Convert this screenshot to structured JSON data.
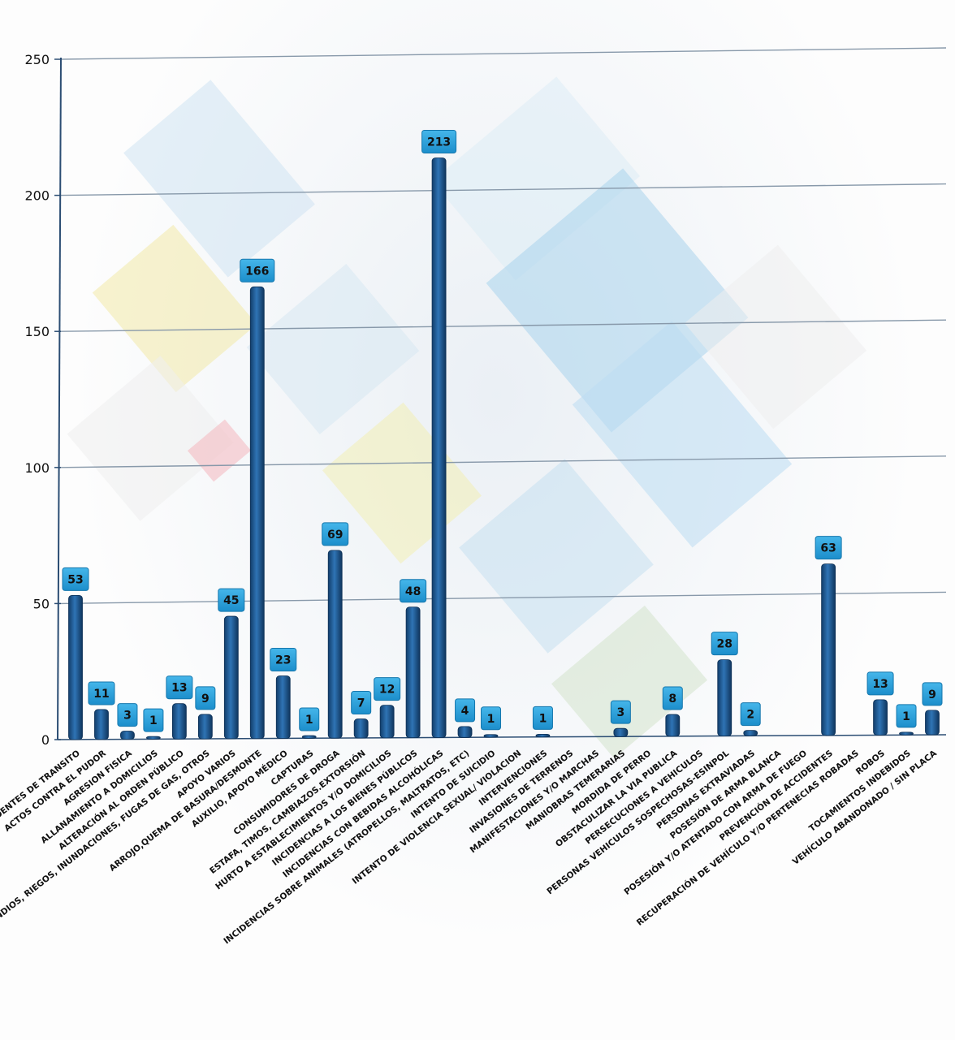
{
  "chart_data": {
    "type": "bar",
    "title": "",
    "xlabel": "",
    "ylabel": "",
    "ylim": [
      0,
      250
    ],
    "yticks": [
      0,
      50,
      100,
      150,
      200,
      250
    ],
    "grid": true,
    "categories": [
      "ACCIDENTES DE TRANSITO",
      "ACTOS CONTRA EL PUDOR",
      "AGRESION FISICA",
      "ALLANAMIENTO A DOMICILIOS",
      "ALTERACIÓN AL ORDEN PÚBLICO",
      "AMAGOS, INCENDIOS, RIEGOS, INUNDACIONES, FUGAS DE GAS, OTROS",
      "APOYO VARIOS",
      "ARROJO,QUEMA DE BASURA/DESMONTE",
      "AUXILIO, APOYO MÉDICO",
      "CAPTURAS",
      "CONSUMIDORES DE DROGA",
      "ESTAFA, TIMOS, CAMBIAZOS.EXTORSIÓN",
      "HURTO A ESTABLECIMIENTOS Y/O DOMICILIOS",
      "INCIDENCIAS A LOS BIENES PÚBLICOS",
      "INCIDENCIAS CON BEBIDAS ALCOHÓLICAS",
      "INCIDENCIAS SOBRE ANIMALES (ATROPELLOS, MALTRATOS, ETC)",
      "INTENTO DE SUICIDIO",
      "INTENTO DE VIOLENCIA SEXUAL/ VIOLACION",
      "INTERVENCIONES",
      "INVASIONES DE TERRENOS",
      "MANIFESTACIONES Y/O MARCHAS",
      "MANIOBRAS TEMERARIAS",
      "MORDIDA DE PERRO",
      "OBSTACULIZAR LA VIA PUBLICA",
      "PERSECUCIONES A VEHICULOS",
      "PERSONAS VEHICULOS SOSPECHOSAS-ESINPOL",
      "PERSONAS EXTRAVIADAS",
      "POSESIÓN DE ARMA BLANCA",
      "POSESIÓN Y/O ATENTADO CON ARMA DE FUEGO",
      "PREVENCIÓN DE ACCIDENTES",
      "RECUPERACIÓN DE VEHÍCULO Y/O PERTENECIAS ROBADAS",
      "ROBOS",
      "TOCAMIENTOS INDEBIDOS",
      "VEHÍCULO ABANDONADO / SIN PLACA"
    ],
    "values": [
      53,
      11,
      3,
      1,
      13,
      9,
      45,
      166,
      23,
      1,
      69,
      7,
      12,
      48,
      213,
      4,
      1,
      null,
      1,
      null,
      null,
      3,
      null,
      8,
      null,
      28,
      2,
      null,
      null,
      63,
      null,
      13,
      1,
      9
    ],
    "data_labels": [
      "53",
      "11",
      "3",
      "1",
      "13",
      "9",
      "45",
      "166",
      "23",
      "1",
      "69",
      "7",
      "12",
      "48",
      "213",
      "4",
      "1",
      "",
      "1",
      "",
      "",
      "3",
      "",
      "8",
      "",
      "28",
      "2",
      "",
      "",
      "63",
      "",
      "13",
      "1",
      "9"
    ],
    "colors": {
      "bar": "#1f5e9e",
      "bar_highlight": "#4f8fcf",
      "label_box": "#2a9fd8",
      "grid": "#8899aa",
      "axis": "#2b4d73"
    }
  }
}
